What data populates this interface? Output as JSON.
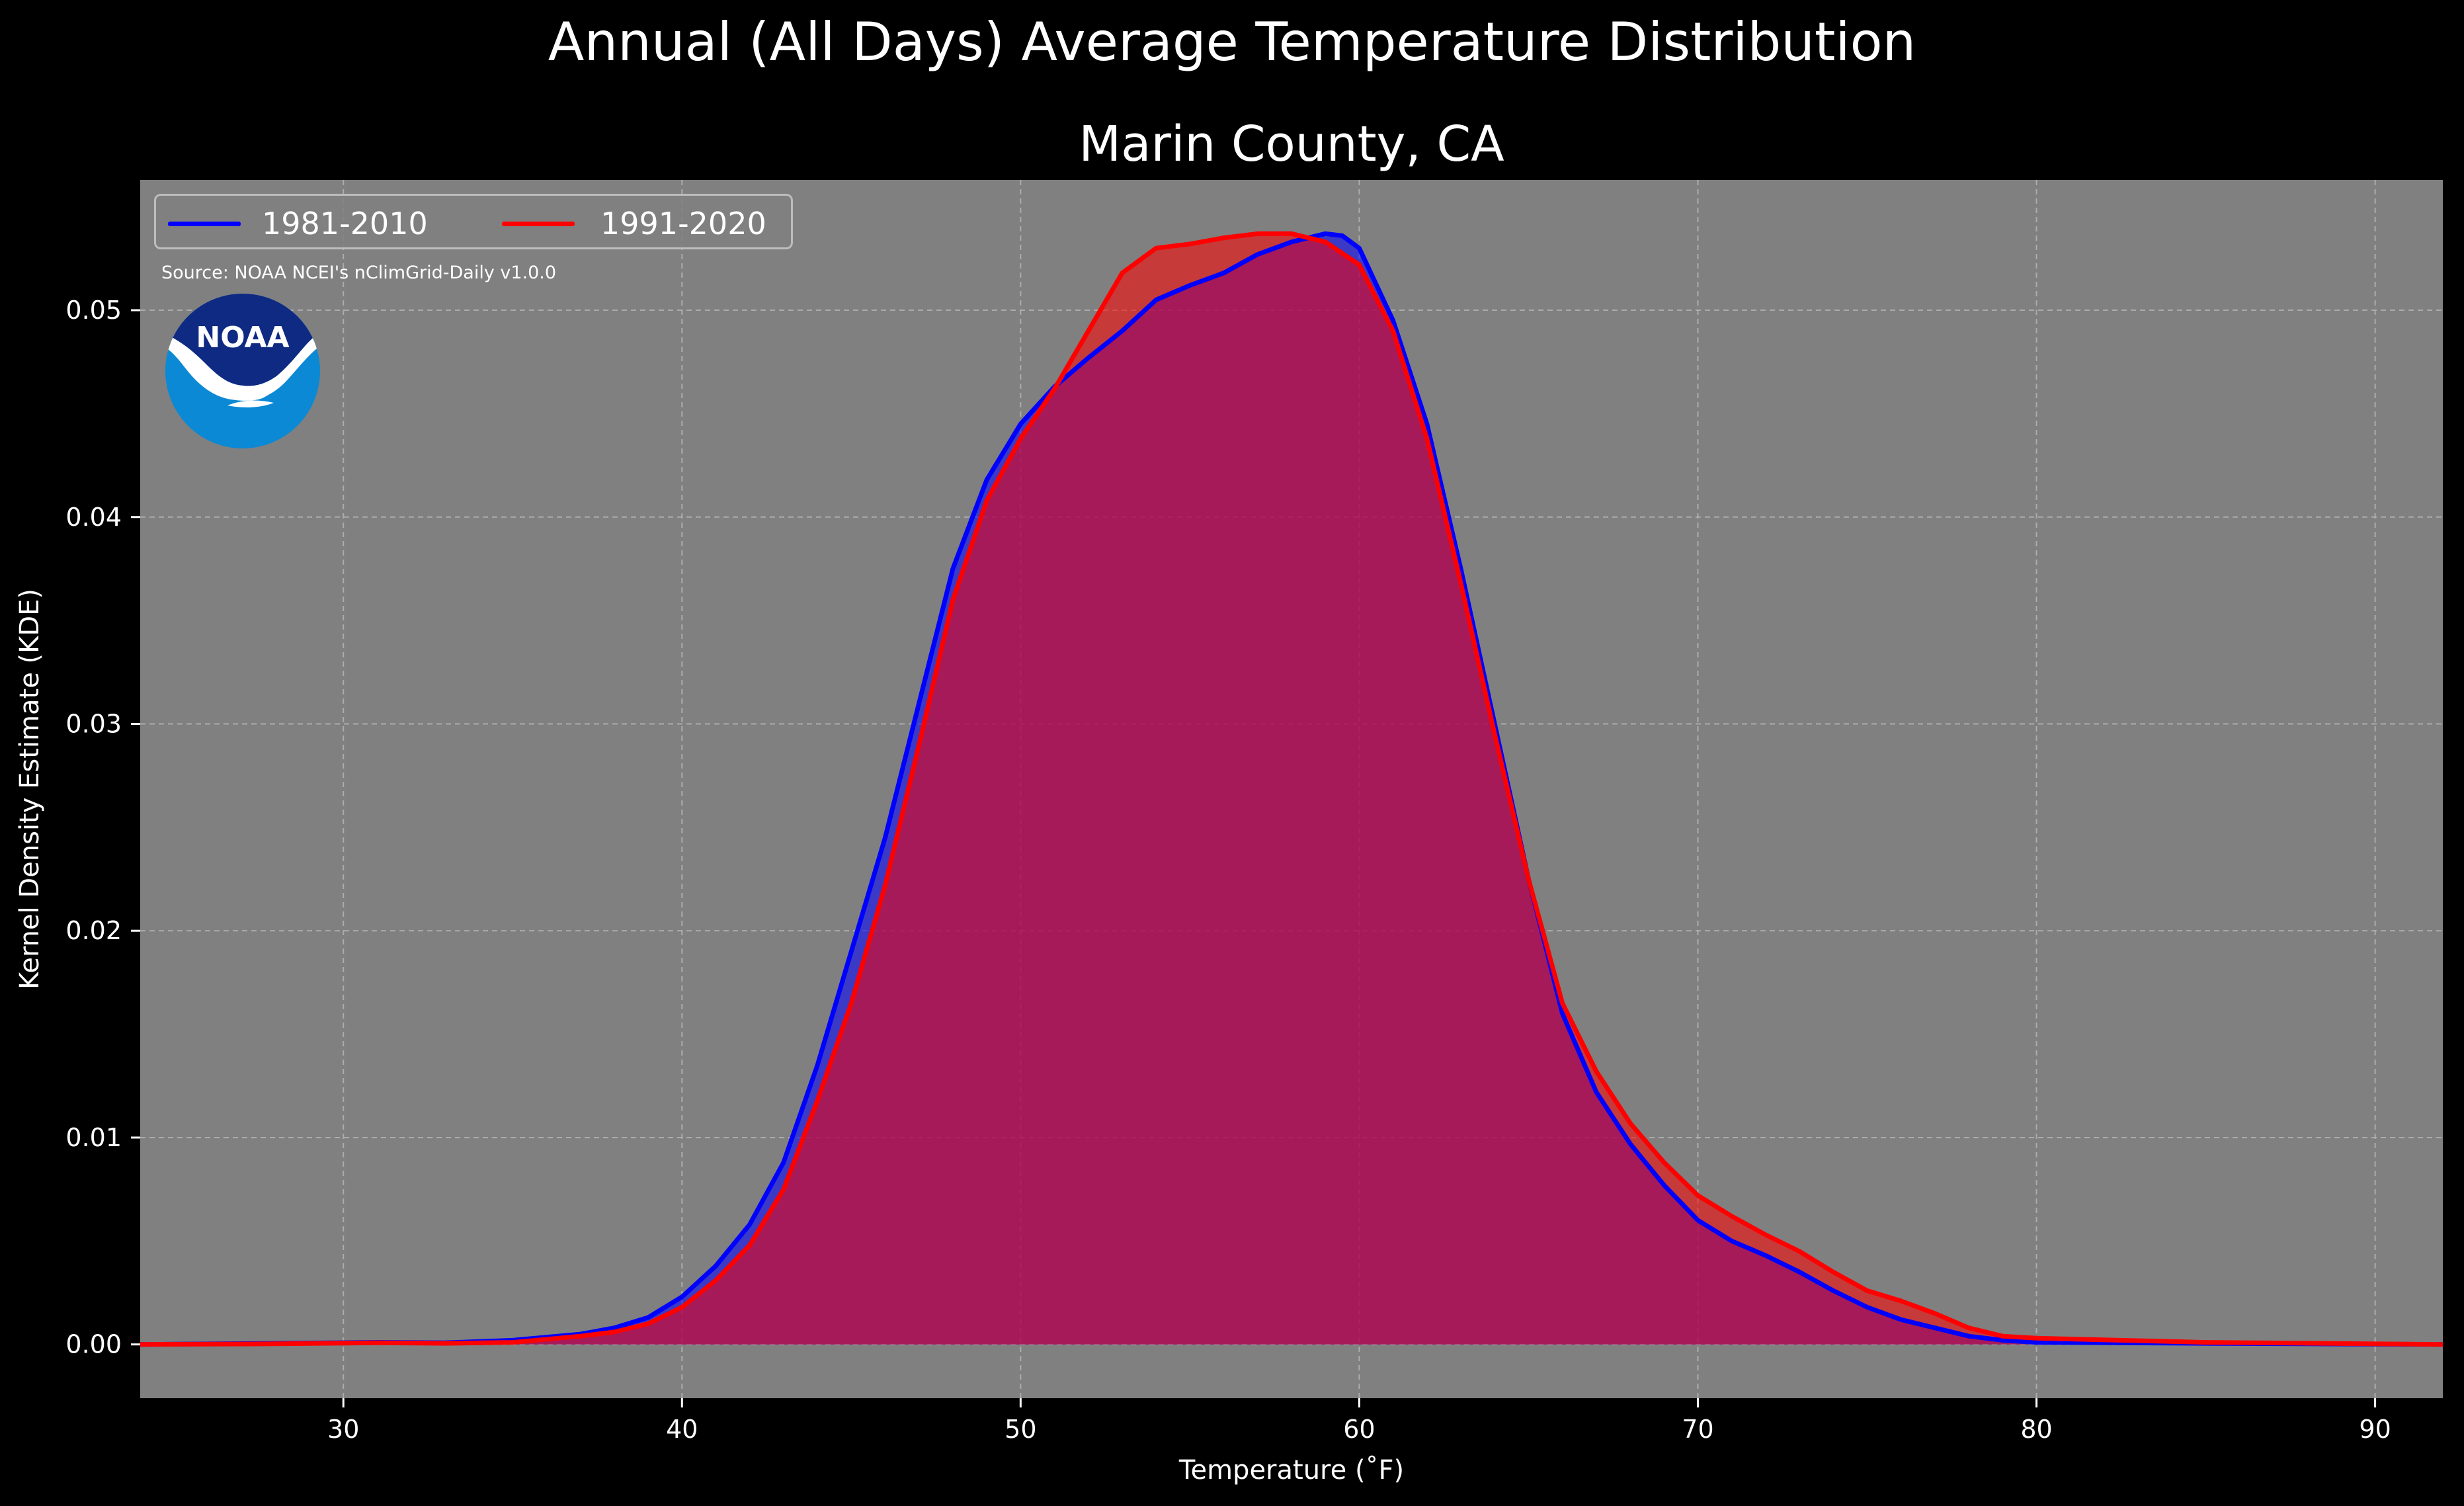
{
  "figure": {
    "suptitle": "Annual (All Days) Average Temperature Distribution",
    "title": "Marin County, CA",
    "source": "Source: NOAA NCEI's nClimGrid-Daily v1.0.0",
    "logo_text": "NOAA",
    "background": "#000000",
    "plot_background": "#808080"
  },
  "chart_data": {
    "type": "area",
    "title": "Marin County, CA",
    "suptitle": "Annual (All Days) Average Temperature Distribution",
    "xlabel": "Temperature (˚F)",
    "ylabel": "Kernel Density Estimate (KDE)",
    "xlim": [
      24,
      92
    ],
    "ylim": [
      -0.0026,
      0.0563
    ],
    "xticks": [
      30,
      40,
      50,
      60,
      70,
      80,
      90
    ],
    "yticks": [
      0.0,
      0.01,
      0.02,
      0.03,
      0.04,
      0.05
    ],
    "ytick_labels": [
      "0.00",
      "0.01",
      "0.02",
      "0.03",
      "0.04",
      "0.05"
    ],
    "grid": true,
    "legend_position": "top-left",
    "series": [
      {
        "name": "1981-2010",
        "color": "#0000ff",
        "fill": "#0000ff",
        "points": [
          [
            24,
            0
          ],
          [
            28,
            5e-05
          ],
          [
            31,
            0.0001
          ],
          [
            33,
            8e-05
          ],
          [
            35,
            0.0002
          ],
          [
            37,
            0.0005
          ],
          [
            38,
            0.0008
          ],
          [
            39,
            0.0013
          ],
          [
            40,
            0.0023
          ],
          [
            41,
            0.0038
          ],
          [
            42,
            0.0058
          ],
          [
            43,
            0.0088
          ],
          [
            44,
            0.0135
          ],
          [
            45,
            0.019
          ],
          [
            46,
            0.0245
          ],
          [
            47,
            0.031
          ],
          [
            48,
            0.0375
          ],
          [
            49,
            0.0418
          ],
          [
            50,
            0.0445
          ],
          [
            51,
            0.0463
          ],
          [
            52,
            0.0477
          ],
          [
            53,
            0.049
          ],
          [
            54,
            0.0505
          ],
          [
            55,
            0.0512
          ],
          [
            56,
            0.0518
          ],
          [
            57,
            0.0527
          ],
          [
            58,
            0.0533
          ],
          [
            59,
            0.0537
          ],
          [
            59.5,
            0.0536
          ],
          [
            60,
            0.053
          ],
          [
            61,
            0.0495
          ],
          [
            62,
            0.0445
          ],
          [
            63,
            0.0375
          ],
          [
            64,
            0.03
          ],
          [
            65,
            0.0225
          ],
          [
            66,
            0.016
          ],
          [
            67,
            0.0122
          ],
          [
            68,
            0.0097
          ],
          [
            69,
            0.0077
          ],
          [
            70,
            0.006
          ],
          [
            71,
            0.005
          ],
          [
            72,
            0.0043
          ],
          [
            73,
            0.0035
          ],
          [
            74,
            0.0026
          ],
          [
            75,
            0.0018
          ],
          [
            76,
            0.0012
          ],
          [
            77,
            0.0008
          ],
          [
            78,
            0.0004
          ],
          [
            79,
            0.0002
          ],
          [
            80,
            0.0001
          ],
          [
            85,
            5e-05
          ],
          [
            92,
            0
          ]
        ]
      },
      {
        "name": "1991-2020",
        "color": "#ff0000",
        "fill": "#ff0000",
        "points": [
          [
            24,
            0
          ],
          [
            28,
            3e-05
          ],
          [
            31,
            8e-05
          ],
          [
            33,
            5e-05
          ],
          [
            35,
            0.0001
          ],
          [
            37,
            0.0004
          ],
          [
            38,
            0.0006
          ],
          [
            39,
            0.001
          ],
          [
            40,
            0.0018
          ],
          [
            41,
            0.0031
          ],
          [
            42,
            0.0048
          ],
          [
            43,
            0.0075
          ],
          [
            44,
            0.0118
          ],
          [
            45,
            0.0165
          ],
          [
            46,
            0.0222
          ],
          [
            47,
            0.029
          ],
          [
            48,
            0.036
          ],
          [
            49,
            0.0408
          ],
          [
            50,
            0.0438
          ],
          [
            51,
            0.0462
          ],
          [
            52,
            0.049
          ],
          [
            53,
            0.0518
          ],
          [
            54,
            0.053
          ],
          [
            55,
            0.0532
          ],
          [
            56,
            0.0535
          ],
          [
            57,
            0.0537
          ],
          [
            58,
            0.0537
          ],
          [
            59,
            0.0533
          ],
          [
            60,
            0.0522
          ],
          [
            61,
            0.049
          ],
          [
            62,
            0.0438
          ],
          [
            63,
            0.0368
          ],
          [
            64,
            0.0295
          ],
          [
            65,
            0.0225
          ],
          [
            66,
            0.0165
          ],
          [
            67,
            0.0132
          ],
          [
            68,
            0.0107
          ],
          [
            69,
            0.0088
          ],
          [
            70,
            0.0072
          ],
          [
            71,
            0.0062
          ],
          [
            72,
            0.0053
          ],
          [
            73,
            0.0045
          ],
          [
            74,
            0.0035
          ],
          [
            75,
            0.0026
          ],
          [
            76,
            0.0021
          ],
          [
            77,
            0.0015
          ],
          [
            78,
            0.0008
          ],
          [
            79,
            0.0004
          ],
          [
            80,
            0.0003
          ],
          [
            85,
            0.0001
          ],
          [
            92,
            0
          ]
        ]
      }
    ]
  }
}
